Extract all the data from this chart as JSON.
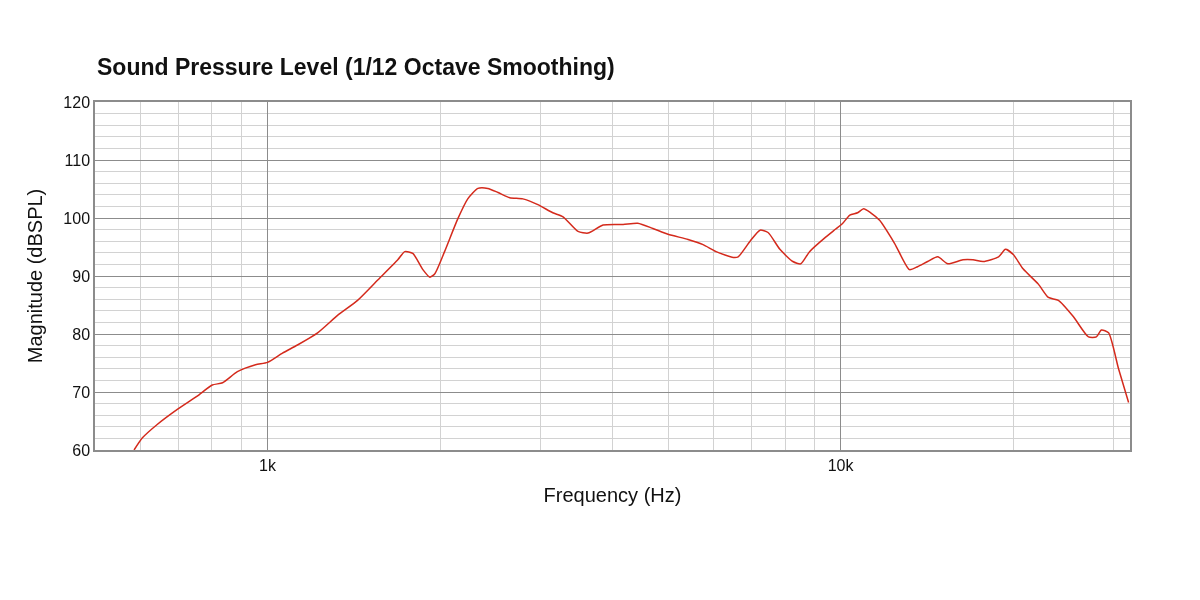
{
  "chart_data": {
    "type": "line",
    "title": "Sound Pressure Level (1/12 Octave Smoothing)",
    "xlabel": "Frequency (Hz)",
    "ylabel": "Magnitude (dBSPL)",
    "log": "x",
    "grid": true,
    "xlim": [
      500,
      32000
    ],
    "ylim": [
      60,
      120
    ],
    "xticks": [
      {
        "value": 600,
        "label": null
      },
      {
        "value": 700,
        "label": null
      },
      {
        "value": 800,
        "label": null
      },
      {
        "value": 900,
        "label": null
      },
      {
        "value": 1000,
        "label": "1k"
      },
      {
        "value": 2000,
        "label": null
      },
      {
        "value": 3000,
        "label": null
      },
      {
        "value": 4000,
        "label": null
      },
      {
        "value": 5000,
        "label": null
      },
      {
        "value": 6000,
        "label": null
      },
      {
        "value": 7000,
        "label": null
      },
      {
        "value": 8000,
        "label": null
      },
      {
        "value": 9000,
        "label": null
      },
      {
        "value": 10000,
        "label": "10k"
      },
      {
        "value": 20000,
        "label": null
      },
      {
        "value": 30000,
        "label": null
      }
    ],
    "yticks": [
      60,
      {
        "value": 62,
        "label": null
      },
      {
        "value": 64,
        "label": null
      },
      {
        "value": 66,
        "label": null
      },
      {
        "value": 68,
        "label": null
      },
      70,
      {
        "value": 72,
        "label": null
      },
      {
        "value": 74,
        "label": null
      },
      {
        "value": 76,
        "label": null
      },
      {
        "value": 78,
        "label": null
      },
      80,
      {
        "value": 82,
        "label": null
      },
      {
        "value": 84,
        "label": null
      },
      {
        "value": 86,
        "label": null
      },
      {
        "value": 88,
        "label": null
      },
      90,
      {
        "value": 92,
        "label": null
      },
      {
        "value": 94,
        "label": null
      },
      {
        "value": 96,
        "label": null
      },
      {
        "value": 98,
        "label": null
      },
      100,
      {
        "value": 102,
        "label": null
      },
      {
        "value": 104,
        "label": null
      },
      {
        "value": 106,
        "label": null
      },
      {
        "value": 108,
        "label": null
      },
      110,
      {
        "value": 112,
        "label": null
      },
      {
        "value": 114,
        "label": null
      },
      {
        "value": 116,
        "label": null
      },
      {
        "value": 118,
        "label": null
      },
      120
    ],
    "series": [
      {
        "color": "#d42a1c",
        "x": [
          585,
          605,
          642,
          696,
          754,
          801,
          835,
          886,
          953,
          1000,
          1062,
          1128,
          1223,
          1325,
          1436,
          1557,
          1688,
          1736,
          1793,
          1867,
          1920,
          1959,
          2037,
          2147,
          2236,
          2329,
          2424,
          2525,
          2647,
          2790,
          2964,
          3147,
          3279,
          3482,
          3626,
          3851,
          4174,
          4428,
          4705,
          5000,
          5419,
          5756,
          6066,
          6499,
          6627,
          6953,
          7237,
          7473,
          7837,
          8256,
          8524,
          8830,
          9420,
          9808,
          10090,
          10380,
          10710,
          10970,
          11290,
          11700,
          12430,
          13190,
          13625,
          14190,
          14780,
          15390,
          16350,
          17030,
          17740,
          18870,
          19400,
          20020,
          20840,
          22140,
          23050,
          24000,
          25480,
          27080,
          27960,
          28530,
          29360,
          30560,
          31820
        ],
        "values": [
          60,
          62.1,
          64.4,
          67,
          69.3,
          71.2,
          71.6,
          73.5,
          74.7,
          75.1,
          76.7,
          78.1,
          80.2,
          83.2,
          85.8,
          89.3,
          92.8,
          94.2,
          93.9,
          91.1,
          89.8,
          90.4,
          94.2,
          99.8,
          103.3,
          105.1,
          105.1,
          104.4,
          103.5,
          103.3,
          102.3,
          100.9,
          100.2,
          97.7,
          97.4,
          98.8,
          98.9,
          99.1,
          98.2,
          97.2,
          96.3,
          95.4,
          94.2,
          93.2,
          93.3,
          96,
          97.9,
          97.5,
          94.6,
          92.5,
          92.1,
          94.2,
          96.7,
          98.1,
          99.1,
          100.5,
          100.9,
          101.6,
          100.9,
          99.6,
          95.6,
          91.1,
          91.6,
          92.5,
          93.3,
          92.1,
          92.8,
          92.8,
          92.5,
          93.3,
          94.6,
          93.7,
          91.2,
          88.6,
          86.3,
          85.8,
          83,
          79.5,
          79.5,
          80.7,
          80.2,
          74,
          68.2
        ]
      }
    ]
  }
}
